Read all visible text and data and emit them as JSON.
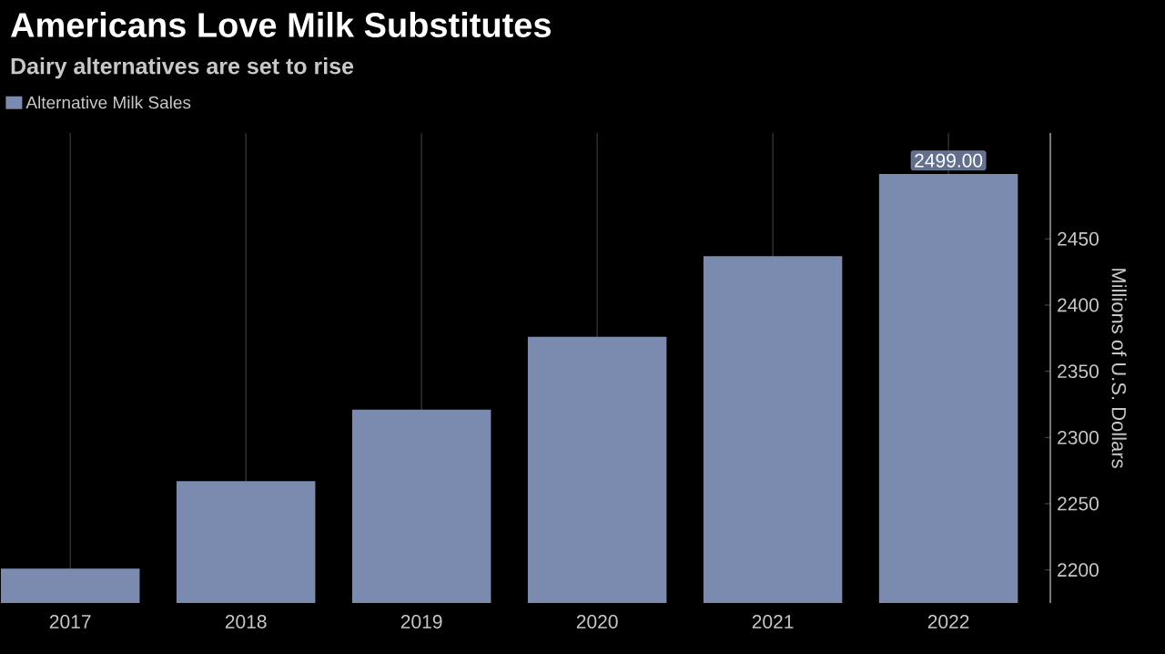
{
  "chart_data": {
    "type": "bar",
    "title": "Americans Love Milk Substitutes",
    "subtitle": "Dairy alternatives are set to rise",
    "ylabel": "Millions of U.S. Dollars",
    "categories": [
      "2017",
      "2018",
      "2019",
      "2020",
      "2021",
      "2022"
    ],
    "series": [
      {
        "name": "Alternative Milk Sales",
        "color": "#7b8bb0",
        "values": [
          2201,
          2267,
          2321,
          2376,
          2437,
          2499
        ],
        "value_labels": [
          null,
          null,
          null,
          null,
          null,
          "2499.00"
        ]
      }
    ],
    "ylim": [
      2175,
      2530
    ],
    "yticks": [
      2200,
      2250,
      2300,
      2350,
      2400,
      2450
    ],
    "grid": "x",
    "legend": "top left"
  }
}
